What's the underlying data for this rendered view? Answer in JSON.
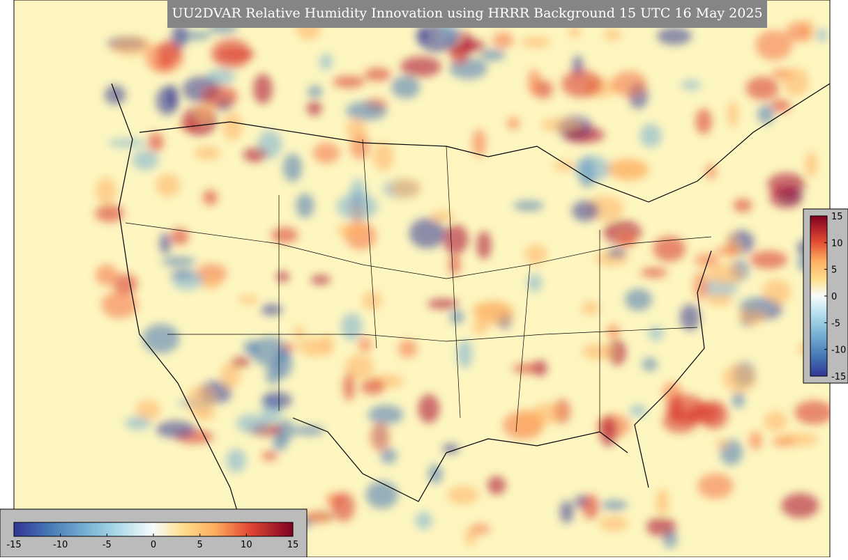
{
  "title": "UU2DVAR Relative Humidity Innovation using HRRR Background 15 UTC 16 May 2025",
  "colorbar": {
    "range": [
      -15,
      15
    ],
    "ticks": [
      -15,
      -10,
      -5,
      0,
      5,
      10,
      15
    ]
  }
}
